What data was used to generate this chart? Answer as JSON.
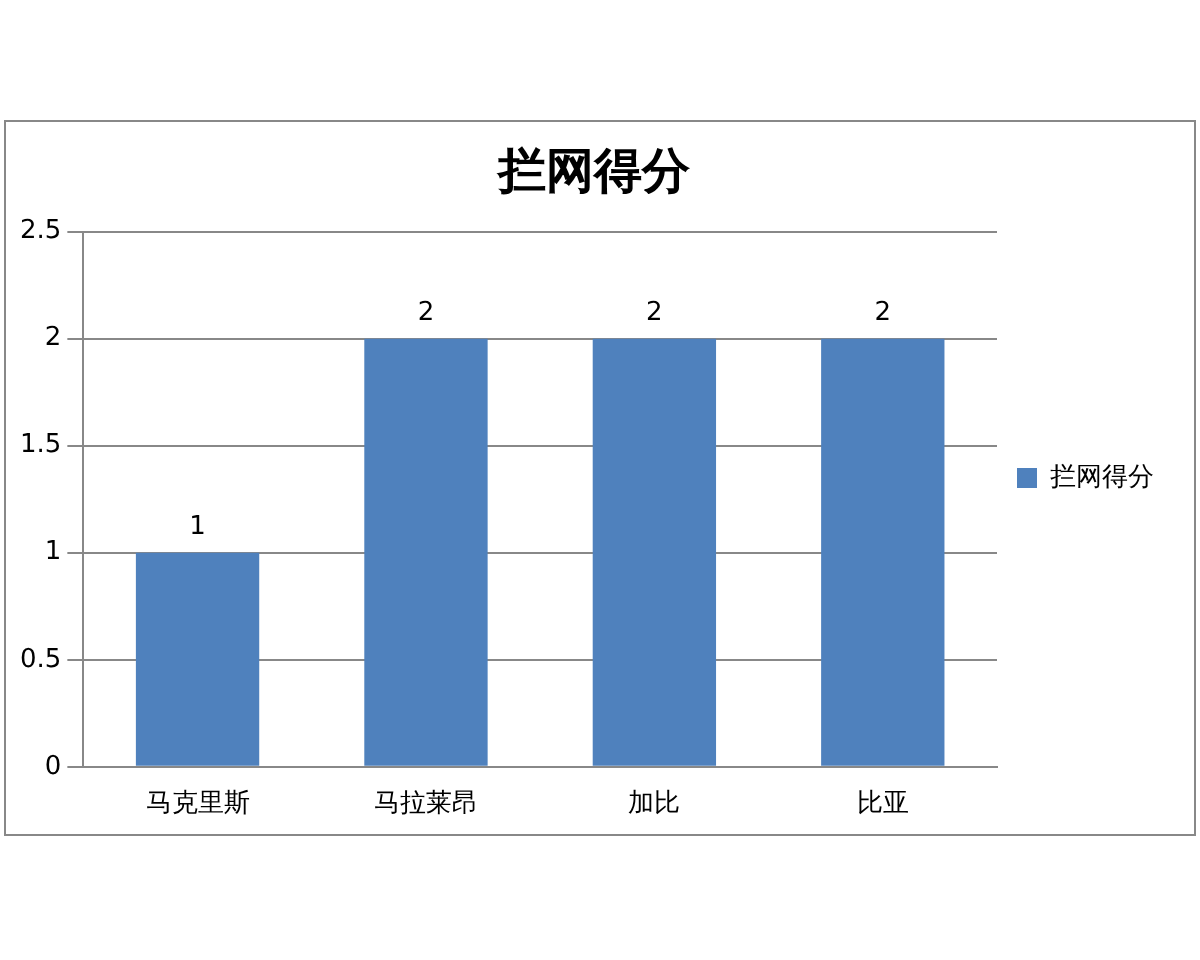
{
  "chart_data": {
    "type": "bar",
    "title": "拦网得分",
    "categories": [
      "马克里斯",
      "马拉莱昂",
      "加比",
      "比亚"
    ],
    "series": [
      {
        "name": "拦网得分",
        "color": "#4f81bd",
        "values": [
          1,
          2,
          2,
          2
        ]
      }
    ],
    "ylim": [
      0,
      2.5
    ],
    "yticks": [
      0,
      0.5,
      1,
      1.5,
      2,
      2.5
    ],
    "grid": "y",
    "legend": "right",
    "data_labels": true
  }
}
